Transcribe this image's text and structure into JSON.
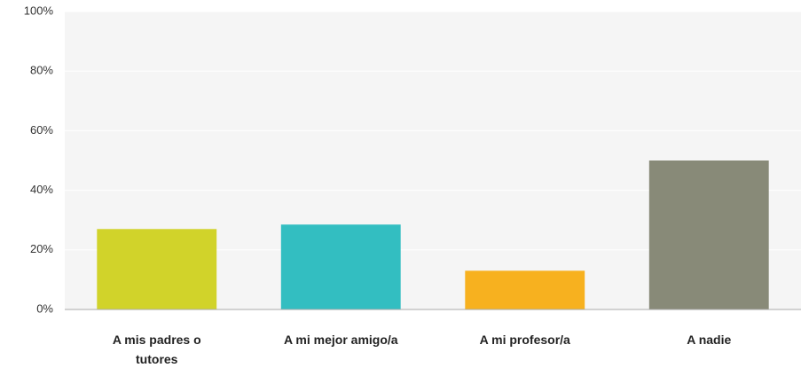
{
  "chart_data": {
    "type": "bar",
    "categories": [
      "A mis padres o tutores",
      "A mi mejor amigo/a",
      "A mi profesor/a",
      "A nadie"
    ],
    "values": [
      27,
      28.5,
      13,
      50
    ],
    "colors": [
      "#d1d32a",
      "#33bec1",
      "#f7b11f",
      "#888a78"
    ],
    "ylim": [
      0,
      100
    ],
    "yticks": [
      {
        "value": 0,
        "label": "0%"
      },
      {
        "value": 20,
        "label": "20%"
      },
      {
        "value": 40,
        "label": "40%"
      },
      {
        "value": 60,
        "label": "60%"
      },
      {
        "value": 80,
        "label": "80%"
      },
      {
        "value": 100,
        "label": "100%"
      }
    ],
    "grid": true
  }
}
